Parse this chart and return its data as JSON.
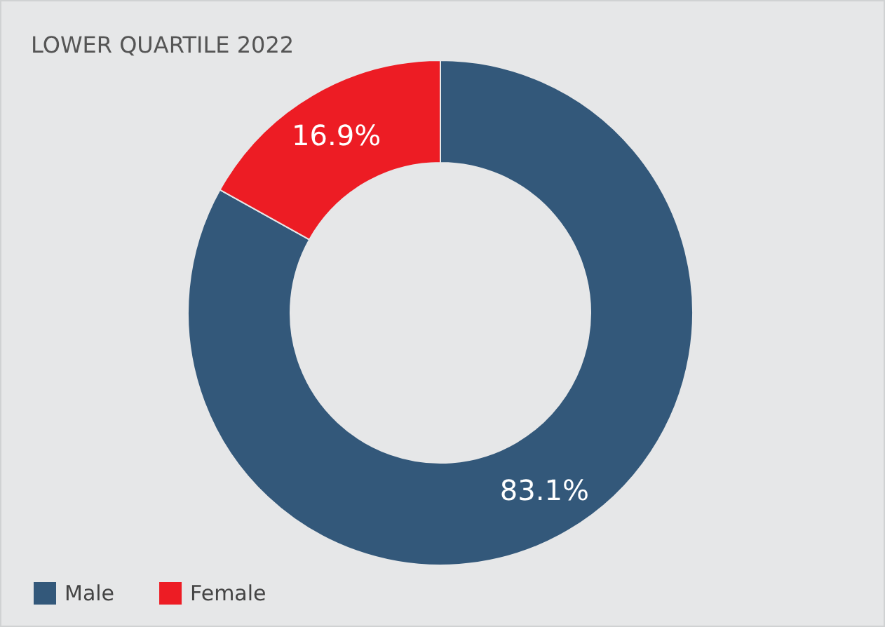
{
  "chart_data": {
    "type": "donut",
    "title": "LOWER QUARTILE 2022",
    "categories": [
      "Male",
      "Female"
    ],
    "values": [
      83.1,
      16.9
    ],
    "colors": [
      "#33587a",
      "#ed1c24"
    ],
    "value_labels": [
      "83.1%",
      "16.9%"
    ],
    "legend": "bottom left"
  }
}
